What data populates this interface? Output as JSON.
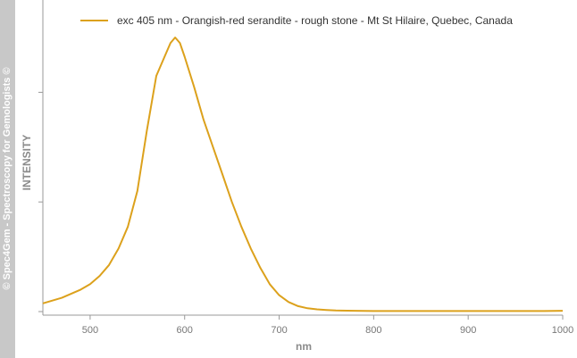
{
  "watermark": "© Spec4Gem - Spectroscopy for Gemologists ©",
  "colors": {
    "series": "#dca11c",
    "axis": "#999999",
    "band": "#c8c8c8"
  },
  "chart_data": {
    "type": "line",
    "xlabel": "nm",
    "ylabel": "INTENSITY",
    "xlim": [
      450,
      1000
    ],
    "ylim": [
      0,
      1
    ],
    "xticks": [
      500,
      600,
      700,
      800,
      900,
      1000
    ],
    "yticks": [
      0,
      0.4,
      0.8
    ],
    "legend_position": "top",
    "grid": false,
    "series": [
      {
        "name": "exc 405 nm - Orangish-red serandite - rough stone - Mt St Hilaire, Quebec, Canada",
        "x": [
          450,
          470,
          490,
          500,
          510,
          520,
          530,
          540,
          550,
          560,
          570,
          580,
          585,
          590,
          595,
          600,
          610,
          620,
          630,
          640,
          650,
          660,
          670,
          680,
          690,
          700,
          710,
          720,
          730,
          740,
          750,
          760,
          780,
          800,
          850,
          900,
          950,
          980,
          1000
        ],
        "y": [
          0.03,
          0.05,
          0.08,
          0.1,
          0.13,
          0.17,
          0.23,
          0.31,
          0.44,
          0.66,
          0.86,
          0.94,
          0.98,
          1.0,
          0.98,
          0.93,
          0.82,
          0.7,
          0.6,
          0.5,
          0.4,
          0.31,
          0.23,
          0.16,
          0.1,
          0.06,
          0.035,
          0.02,
          0.012,
          0.008,
          0.006,
          0.004,
          0.003,
          0.002,
          0.002,
          0.002,
          0.002,
          0.002,
          0.003
        ]
      }
    ]
  }
}
